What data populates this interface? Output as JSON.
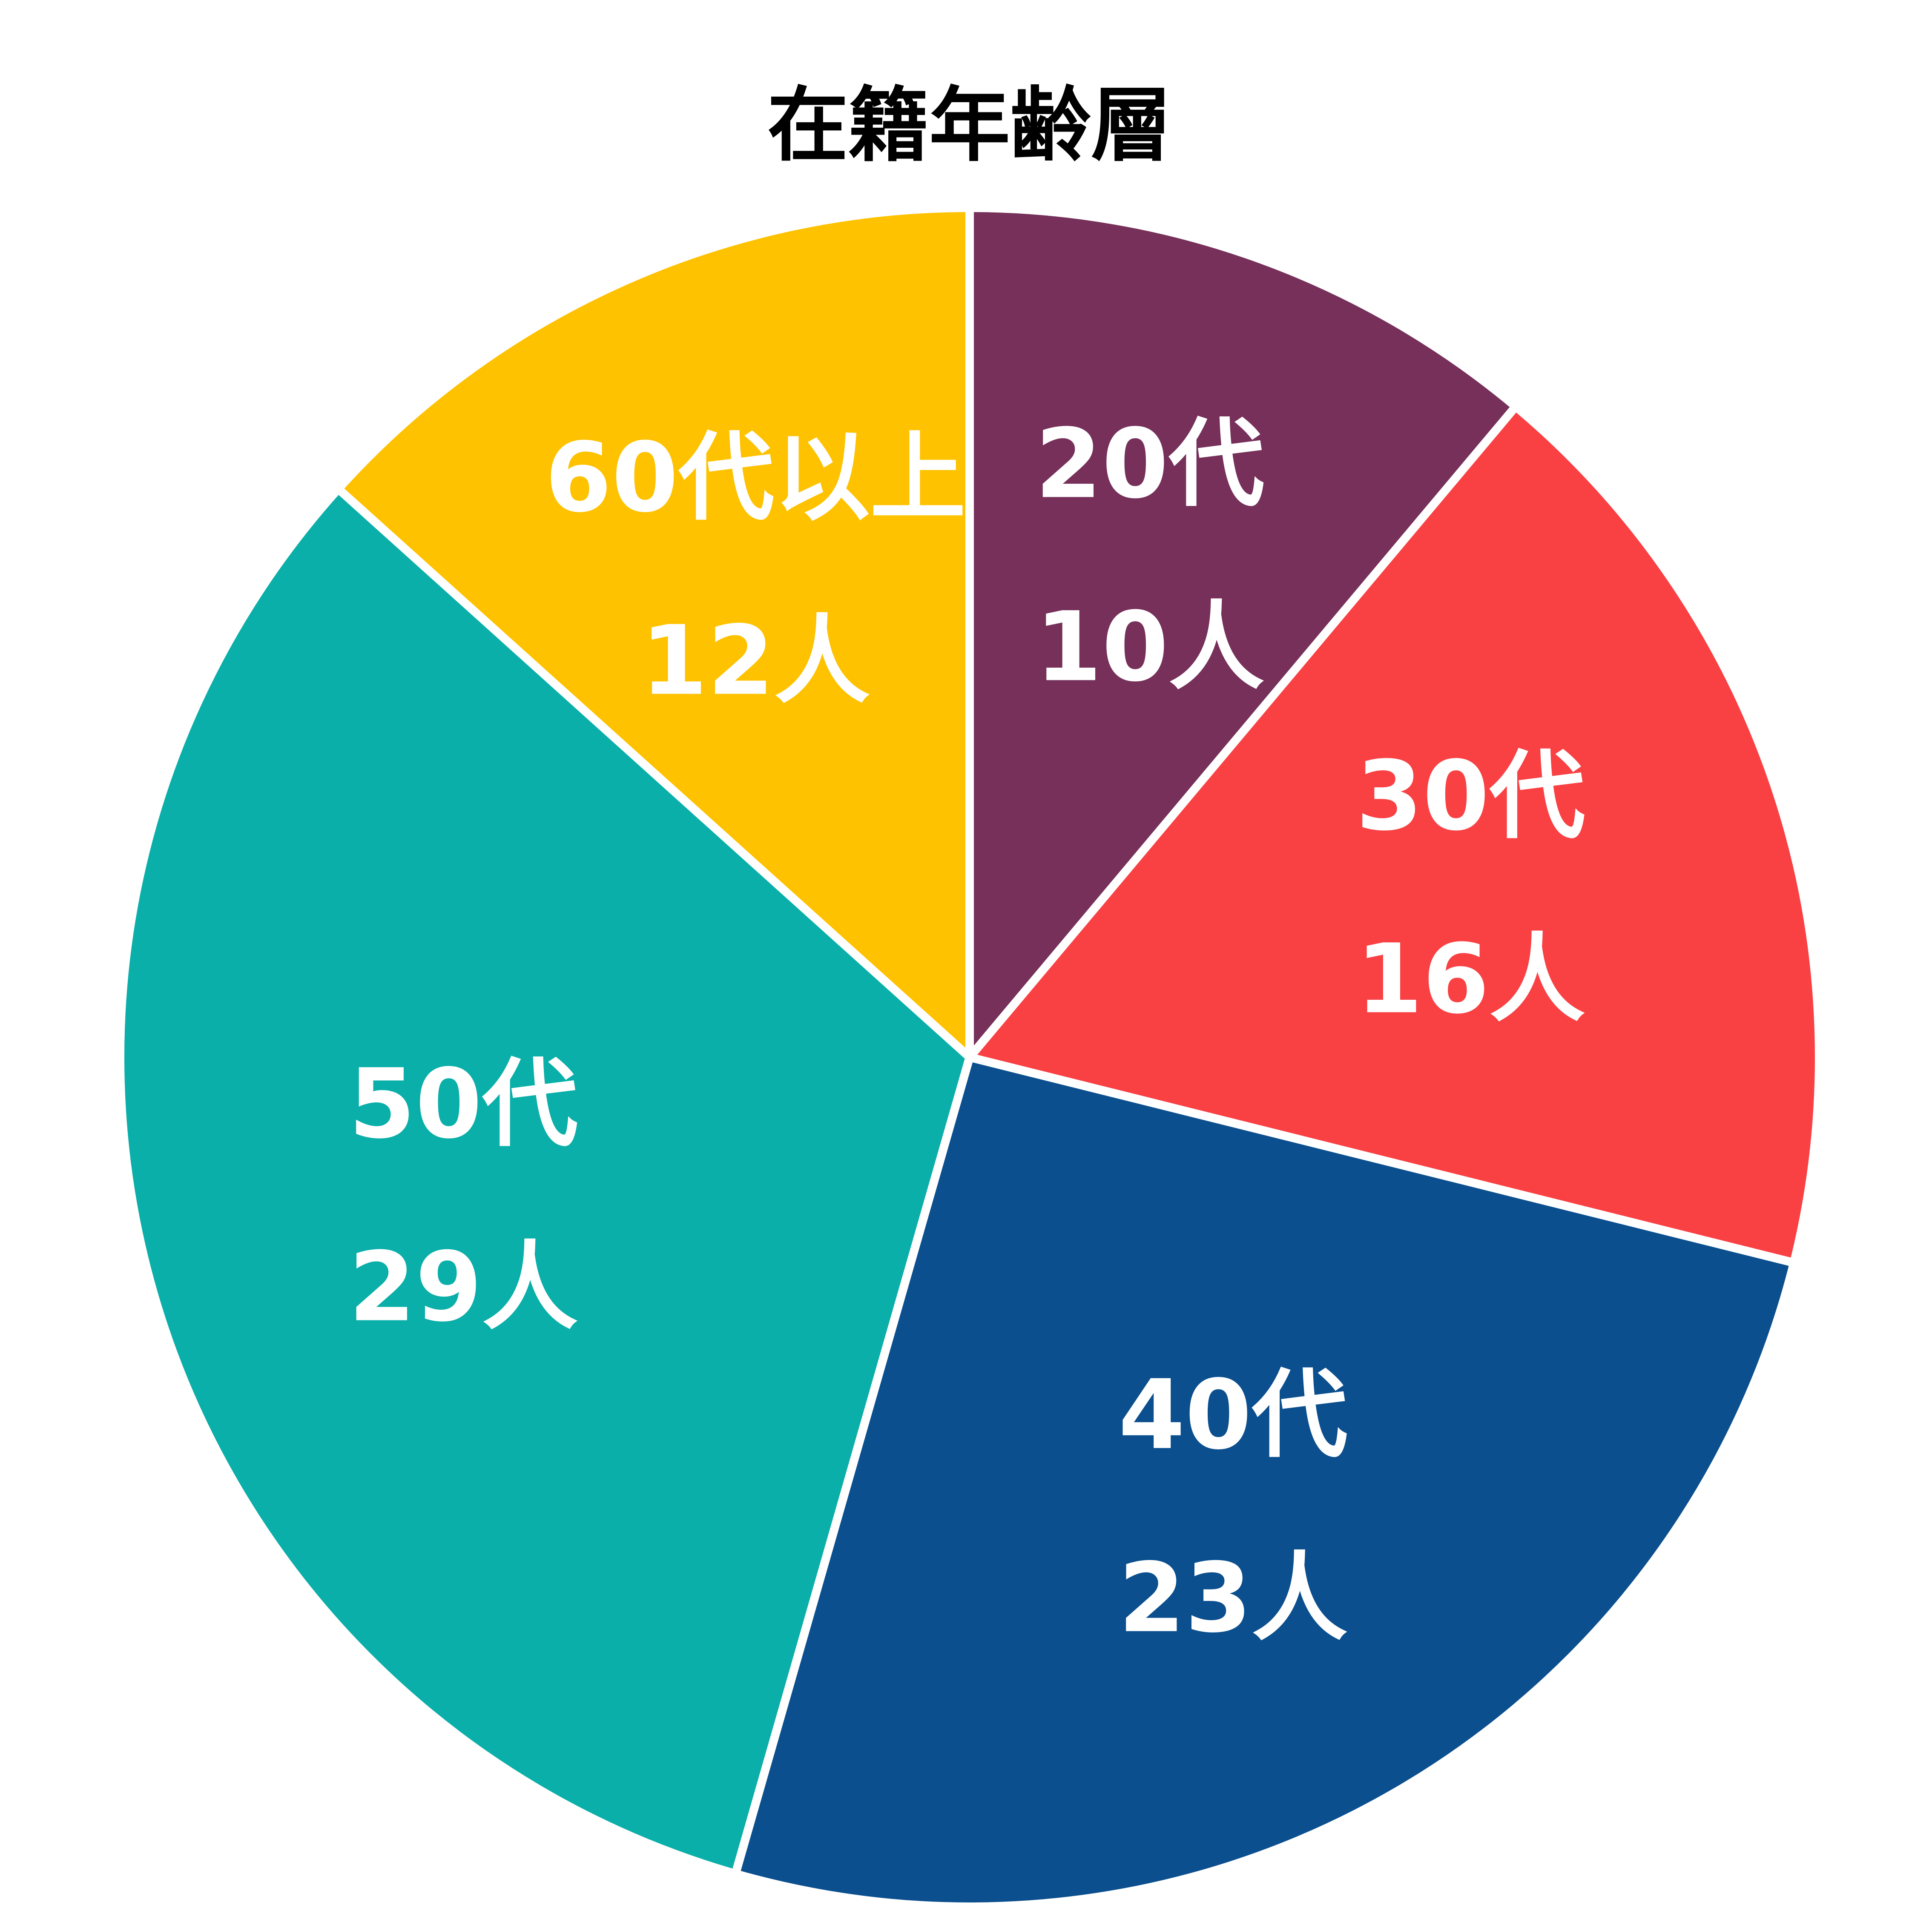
{
  "chart_data": {
    "type": "pie",
    "title": "在籍年齢層",
    "categories": [
      "20代",
      "30代",
      "40代",
      "50代",
      "60代以上"
    ],
    "values": [
      10,
      16,
      23,
      29,
      12
    ],
    "value_labels": [
      "10人",
      "16人",
      "23人",
      "29人",
      "12人"
    ],
    "colors": [
      "#76305a",
      "#f94144",
      "#0b4f8e",
      "#0aafa9",
      "#fec200"
    ]
  }
}
